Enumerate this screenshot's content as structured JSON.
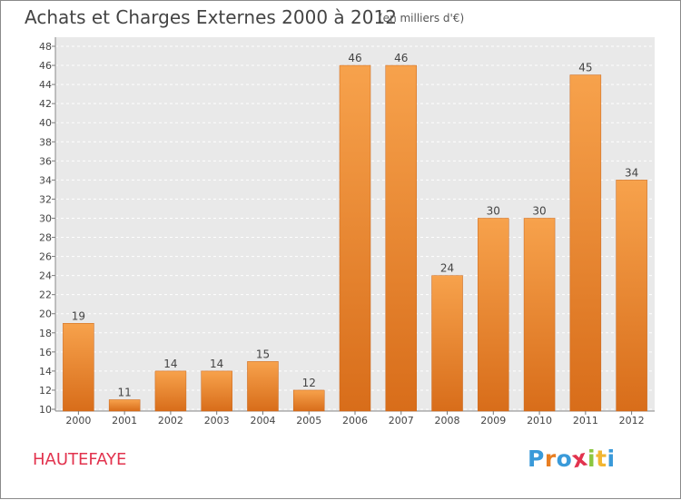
{
  "title": "Achats et Charges Externes 2000 à 2012",
  "subtitle": "(en milliers d'€)",
  "city": "HAUTEFAYE",
  "logo": {
    "text": "Proxiti",
    "letters": [
      {
        "ch": "P",
        "color": "#3a9ad9"
      },
      {
        "ch": "r",
        "color": "#e87e22"
      },
      {
        "ch": "o",
        "color": "#3a9ad9"
      },
      {
        "ch": "x",
        "color": "#e2334e"
      },
      {
        "ch": "i",
        "color": "#8cc63f"
      },
      {
        "ch": "t",
        "color": "#f2b632"
      },
      {
        "ch": "i",
        "color": "#3a9ad9"
      }
    ]
  },
  "colors": {
    "bar_top": "#f7a24c",
    "bar_bottom": "#d86d1a",
    "bar_edge": "#c9651a",
    "grid": "#ffffff",
    "plot_bg": "#e9e9e9",
    "text": "#444444",
    "city": "#e2334e"
  },
  "chart_data": {
    "type": "bar",
    "title": "Achats et Charges Externes 2000 à 2012",
    "subtitle": "(en milliers d'€)",
    "xlabel": "",
    "ylabel": "",
    "categories": [
      "2000",
      "2001",
      "2002",
      "2003",
      "2004",
      "2005",
      "2006",
      "2007",
      "2008",
      "2009",
      "2010",
      "2011",
      "2012"
    ],
    "values": [
      19,
      11,
      14,
      14,
      15,
      12,
      46,
      46,
      24,
      30,
      30,
      45,
      34
    ],
    "ylim": [
      10,
      48
    ],
    "yticks": [
      10,
      12,
      14,
      16,
      18,
      20,
      22,
      24,
      26,
      28,
      30,
      32,
      34,
      36,
      38,
      40,
      42,
      44,
      46,
      48
    ],
    "grid": "horizontal dashed",
    "legend": "none"
  }
}
